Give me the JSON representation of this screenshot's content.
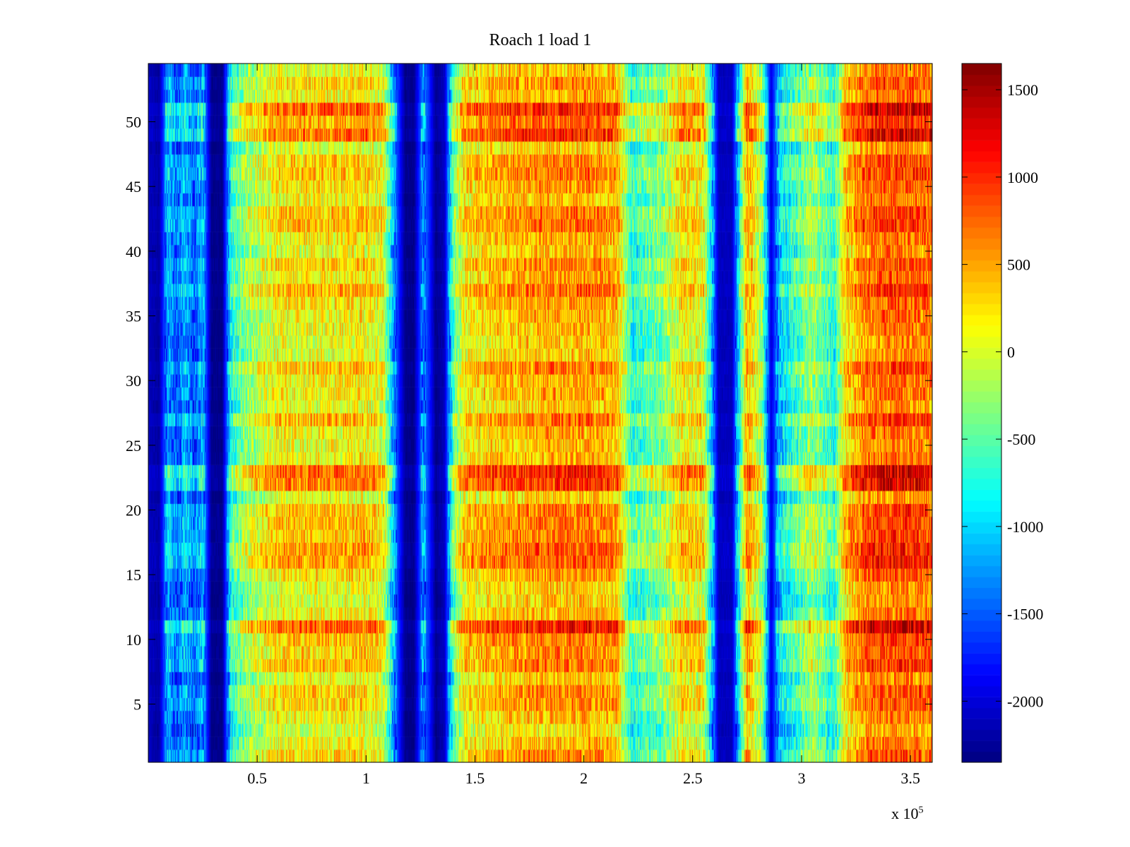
{
  "chart_data": {
    "type": "heatmap",
    "title": "Roach 1 load 1",
    "xlabel": "",
    "ylabel": "",
    "x_multiplier": "x 10",
    "x_multiplier_exponent": "5",
    "xlim": [
      0,
      360000
    ],
    "ylim": [
      0.5,
      54.5
    ],
    "rows": 54,
    "x_ticks": [
      0.5,
      1,
      1.5,
      2,
      2.5,
      3,
      3.5
    ],
    "x_tick_labels": [
      "0.5",
      "1",
      "1.5",
      "2",
      "2.5",
      "3",
      "3.5"
    ],
    "y_ticks": [
      5,
      10,
      15,
      20,
      25,
      30,
      35,
      40,
      45,
      50
    ],
    "y_tick_labels": [
      "5",
      "10",
      "15",
      "20",
      "25",
      "30",
      "35",
      "40",
      "45",
      "50"
    ],
    "colormap": "jet",
    "clim": [
      -2350,
      1650
    ],
    "colorbar_ticks": [
      1500,
      1000,
      500,
      0,
      -500,
      -1000,
      -1500,
      -2000
    ],
    "colorbar_tick_labels": [
      "1500",
      "1000",
      "500",
      "0",
      "-500",
      "-1000",
      "-1500",
      "-2000"
    ],
    "column_profile": {
      "x": [
        0,
        5000,
        9000,
        13000,
        17000,
        21000,
        25000,
        29000,
        34000,
        38000,
        45000,
        60000,
        80000,
        100000,
        108000,
        113000,
        118000,
        122000,
        126000,
        129000,
        132000,
        136000,
        140000,
        145000,
        160000,
        180000,
        200000,
        215000,
        222000,
        228000,
        235000,
        245000,
        255000,
        262000,
        268000,
        275000,
        282000,
        286000,
        290000,
        297000,
        305000,
        315000,
        320000,
        330000,
        345000,
        360000
      ],
      "mean_value": [
        -2100,
        -2200,
        -1100,
        -1500,
        -1100,
        -1500,
        -1100,
        -2300,
        -2300,
        -700,
        -250,
        200,
        200,
        250,
        50,
        -1300,
        -2300,
        -2300,
        -1300,
        -1700,
        -2300,
        -2100,
        -500,
        200,
        400,
        500,
        550,
        450,
        -700,
        -500,
        -400,
        200,
        100,
        -2100,
        -2100,
        500,
        -300,
        -2000,
        -1000,
        -600,
        -200,
        -700,
        300,
        700,
        800,
        700
      ]
    },
    "hot_rows": [
      11,
      16,
      17,
      22,
      23,
      49,
      50,
      51
    ],
    "cool_rows": [
      3,
      4,
      13,
      28
    ]
  }
}
